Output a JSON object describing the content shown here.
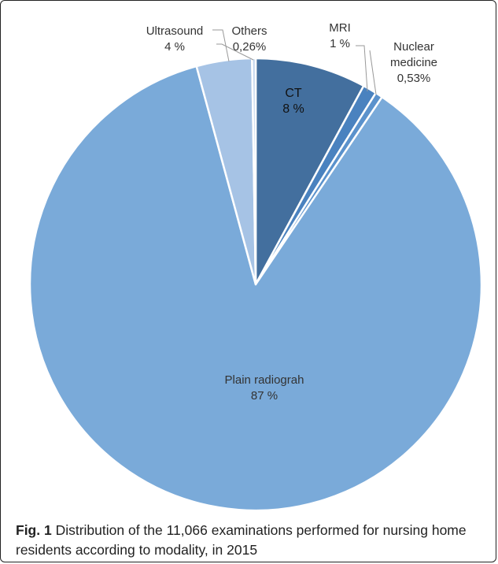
{
  "chart_data": {
    "type": "pie",
    "slices": [
      {
        "name": "CT",
        "value": 8,
        "value_label": "8 %",
        "color": "#436f9e"
      },
      {
        "name": "MRI",
        "value": 1,
        "value_label": "1 %",
        "color": "#4a82bf"
      },
      {
        "name": "Nuclear medicine",
        "name_lines": [
          "Nuclear",
          "medicine"
        ],
        "value": 0.53,
        "value_label": "0,53%",
        "color": "#5b92cc"
      },
      {
        "name": "Plain radiograh",
        "value": 87,
        "value_label": "87 %",
        "color": "#7aaad9"
      },
      {
        "name": "Ultrasound",
        "value": 4,
        "value_label": "4 %",
        "color": "#a6c3e5"
      },
      {
        "name": "Others",
        "value": 0.26,
        "value_label": "0,26%",
        "color": "#c3d6ee"
      }
    ]
  },
  "caption": {
    "fig_label": "Fig. 1",
    "text": "Distribution of the 11,066 examinations performed for nursing home residents according to modality, in 2015"
  }
}
